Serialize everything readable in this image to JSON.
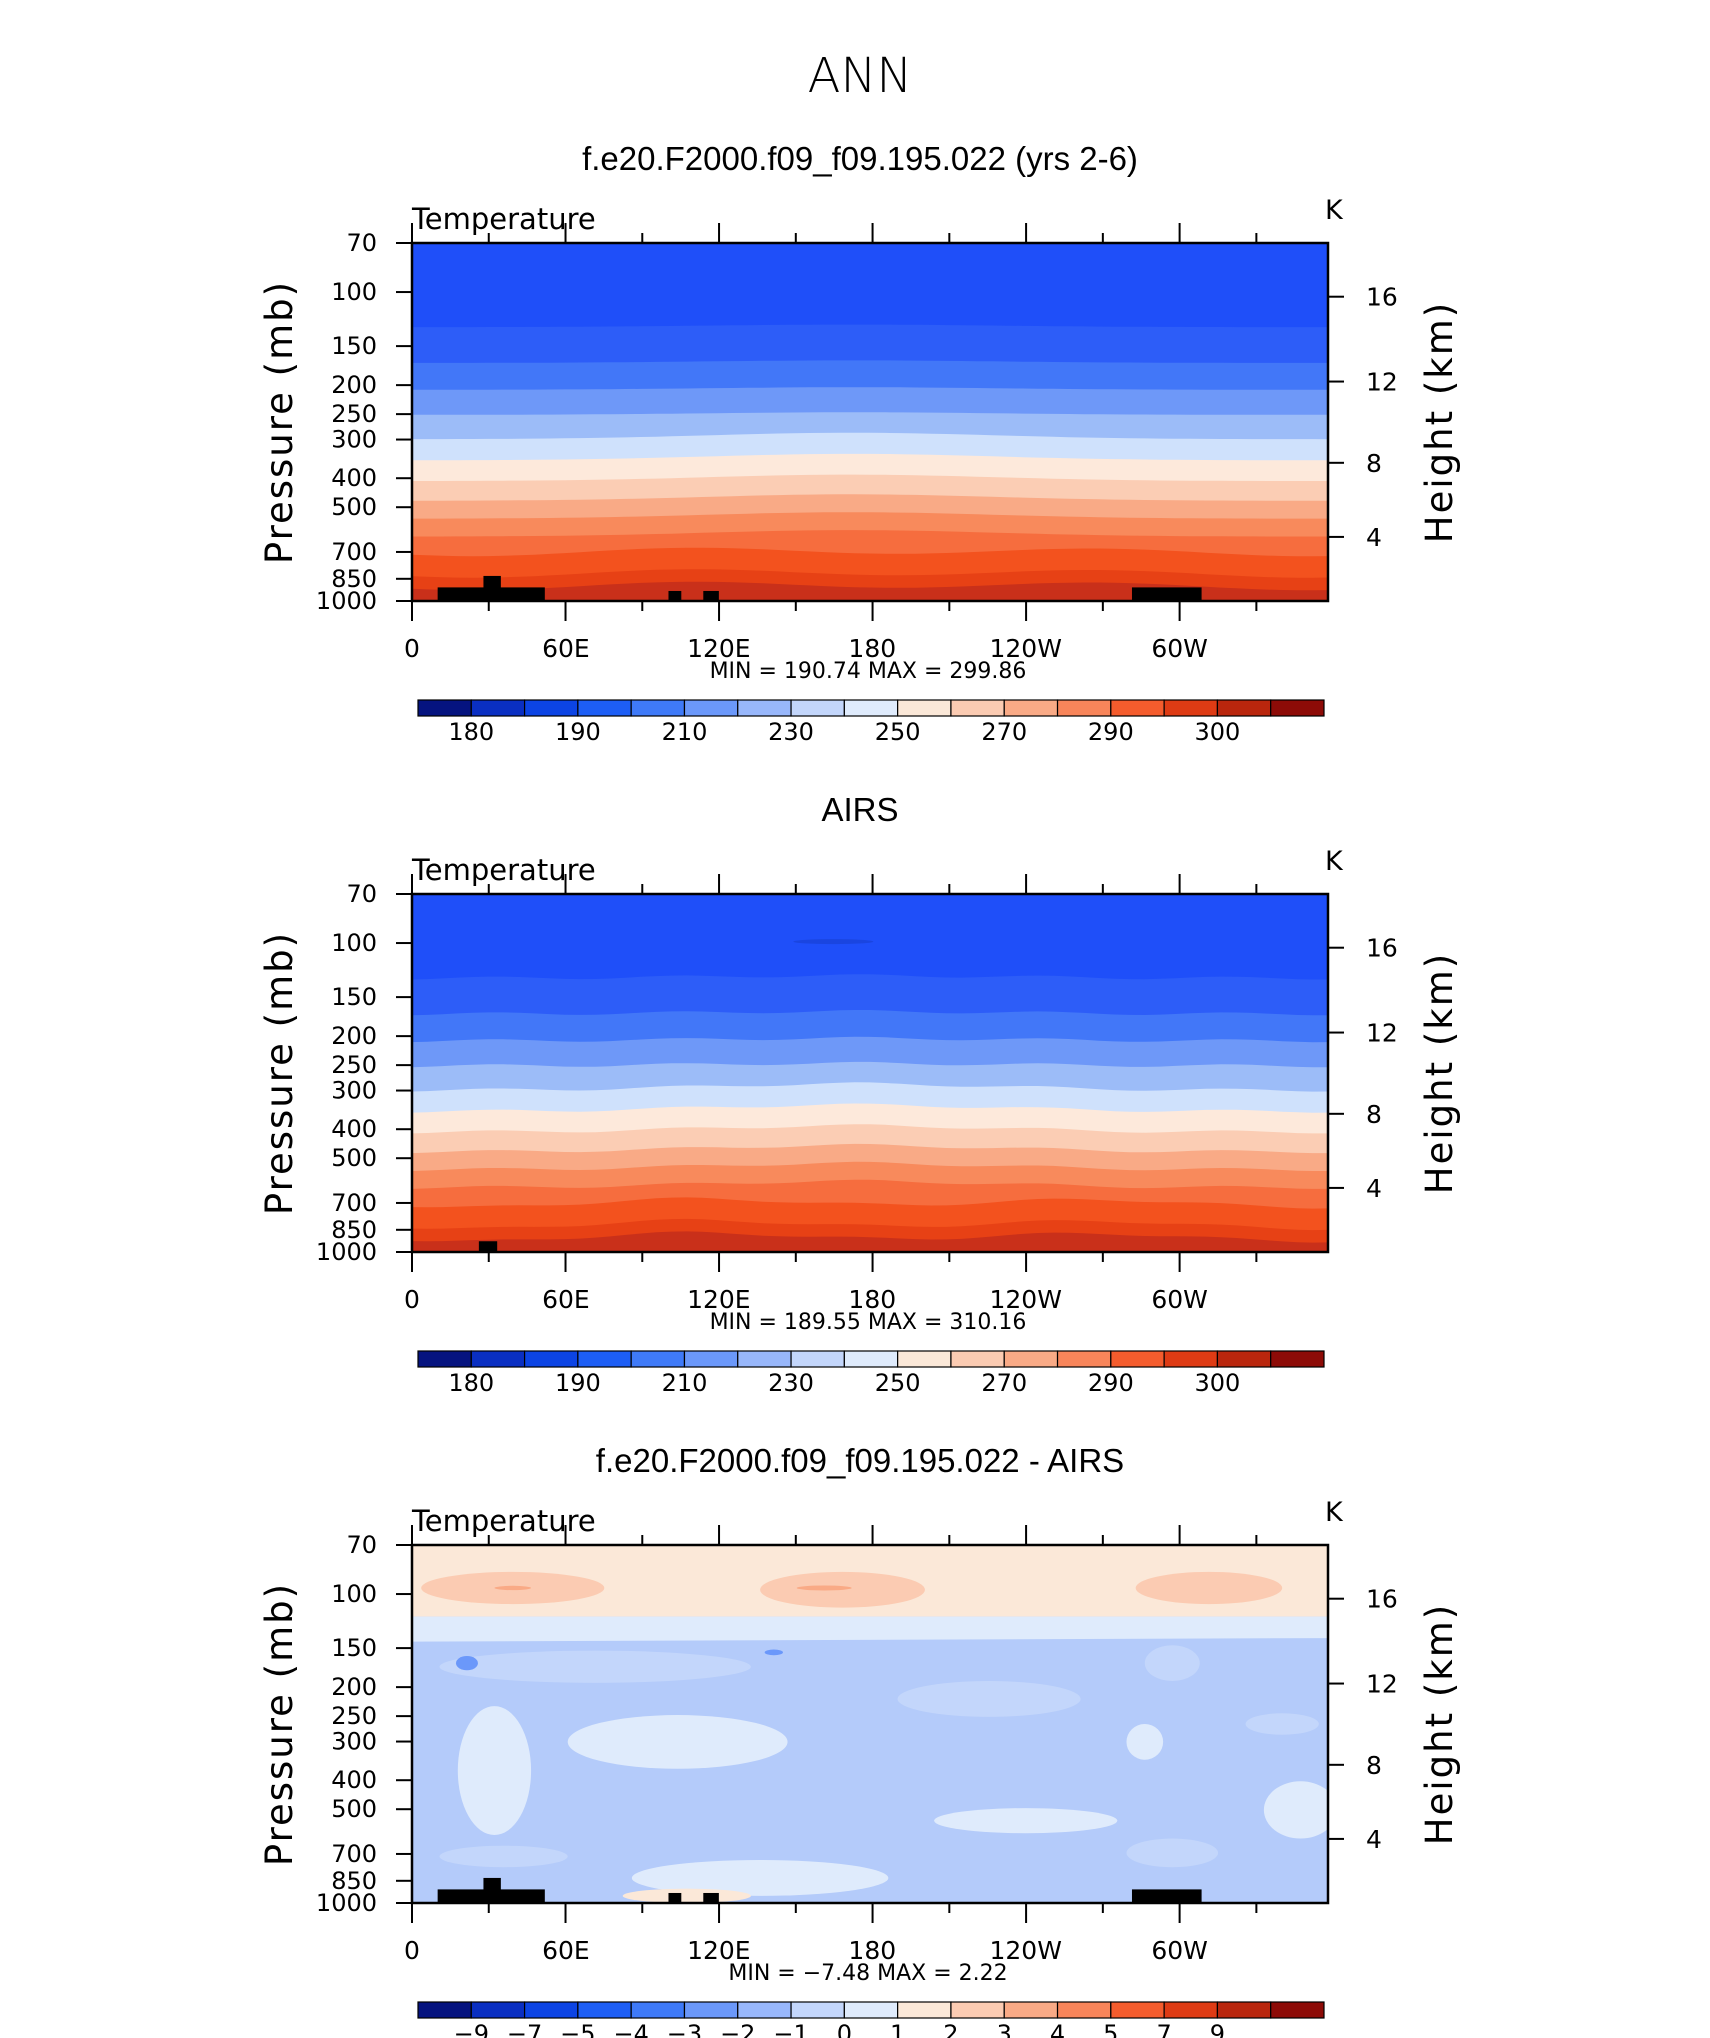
{
  "figure_title": "ANN",
  "chart_data": [
    {
      "type": "heatmap",
      "title": "f.e20.F2000.f09_f09.195.022 (yrs 2-6)",
      "field_label": "Temperature",
      "units": "K",
      "ylabel": "Pressure (mb)",
      "ylabel_right": "Height (km)",
      "x_tick_labels": [
        "0",
        "60E",
        "120E",
        "180",
        "120W",
        "60W"
      ],
      "y_tick_labels": [
        "70",
        "100",
        "150",
        "200",
        "250",
        "300",
        "400",
        "500",
        "700",
        "850",
        "1000"
      ],
      "y_right_tick_labels": [
        "16",
        "12",
        "8",
        "4"
      ],
      "stats": "MIN  =  190.74   MAX  =  299.86",
      "colorbar_labels": [
        "180",
        "190",
        "210",
        "230",
        "250",
        "270",
        "290",
        "300"
      ],
      "min": 190.74,
      "max": 299.86
    },
    {
      "type": "heatmap",
      "title": "AIRS",
      "field_label": "Temperature",
      "units": "K",
      "ylabel": "Pressure (mb)",
      "ylabel_right": "Height (km)",
      "x_tick_labels": [
        "0",
        "60E",
        "120E",
        "180",
        "120W",
        "60W"
      ],
      "y_tick_labels": [
        "70",
        "100",
        "150",
        "200",
        "250",
        "300",
        "400",
        "500",
        "700",
        "850",
        "1000"
      ],
      "y_right_tick_labels": [
        "16",
        "12",
        "8",
        "4"
      ],
      "stats": "MIN  =  189.55   MAX  =  310.16",
      "colorbar_labels": [
        "180",
        "190",
        "210",
        "230",
        "250",
        "270",
        "290",
        "300"
      ],
      "min": 189.55,
      "max": 310.16
    },
    {
      "type": "heatmap",
      "title": "f.e20.F2000.f09_f09.195.022 - AIRS",
      "field_label": "Temperature",
      "units": "K",
      "ylabel": "Pressure (mb)",
      "ylabel_right": "Height (km)",
      "x_tick_labels": [
        "0",
        "60E",
        "120E",
        "180",
        "120W",
        "60W"
      ],
      "y_tick_labels": [
        "70",
        "100",
        "150",
        "200",
        "250",
        "300",
        "400",
        "500",
        "700",
        "850",
        "1000"
      ],
      "y_right_tick_labels": [
        "16",
        "12",
        "8",
        "4"
      ],
      "stats": "MIN  =   −7.48   MAX  =     2.22",
      "colorbar_labels": [
        "−9",
        "−7",
        "−5",
        "−4",
        "−3",
        "−2",
        "−1",
        "0",
        "1",
        "2",
        "3",
        "4",
        "5",
        "7",
        "9"
      ],
      "min": -7.48,
      "max": 2.22
    }
  ],
  "colorbar_colors": [
    "#05137f",
    "#0a2fc2",
    "#0c44e4",
    "#1d5ef5",
    "#3f7af8",
    "#6b98fa",
    "#98b7fb",
    "#c3d6fb",
    "#dfebfc",
    "#fbe8d8",
    "#fbcbb2",
    "#f9aa86",
    "#f8855a",
    "#f45c2d",
    "#de3b14",
    "#b9260d",
    "#8d0b07"
  ],
  "band_colors_upper": [
    "#1f4ff9",
    "#2d5df8",
    "#4277f8",
    "#6e98f8",
    "#9cbcf8",
    "#cfe1fc",
    "#fde9db",
    "#fbcdb4",
    "#f9aa86",
    "#f88a5c",
    "#f66d3e",
    "#f3521e",
    "#e74115",
    "#c9301a"
  ],
  "band_colors_diff": [
    "#fbe8d8",
    "#fbcbb2",
    "#f9aa86",
    "#c3d6fb",
    "#98b7fb",
    "#6b98fa",
    "#dfebfc",
    "#b4cbfa"
  ],
  "topography_color": "#000000"
}
